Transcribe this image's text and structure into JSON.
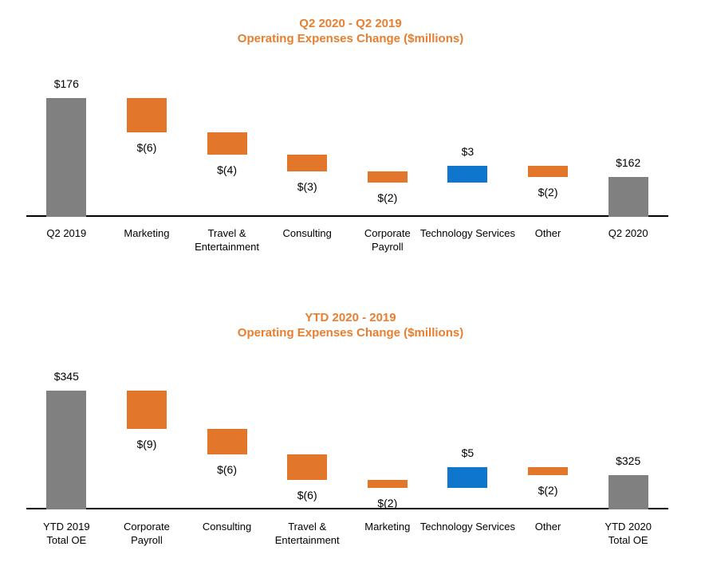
{
  "chart_data": [
    {
      "type": "bar",
      "subtype": "waterfall",
      "title_line1": "Q2 2020 - Q2 2019",
      "title_line2": "Operating Expenses Change ($millions)",
      "ylim": [
        155,
        176
      ],
      "legend": "none",
      "grid": false,
      "items": [
        {
          "category": "Q2 2019",
          "type": "total",
          "value": 176,
          "label": "$176"
        },
        {
          "category": "Marketing",
          "type": "delta",
          "value": -6,
          "label": "$(6)"
        },
        {
          "category": "Travel &\nEntertainment",
          "type": "delta",
          "value": -4,
          "label": "$(4)"
        },
        {
          "category": "Consulting",
          "type": "delta",
          "value": -3,
          "label": "$(3)"
        },
        {
          "category": "Corporate\nPayroll",
          "type": "delta",
          "value": -2,
          "label": "$(2)"
        },
        {
          "category": "Technology Services",
          "type": "delta",
          "value": 3,
          "label": "$3"
        },
        {
          "category": "Other",
          "type": "delta",
          "value": -2,
          "label": "$(2)"
        },
        {
          "category": "Q2 2020",
          "type": "total",
          "value": 162,
          "label": "$162"
        }
      ]
    },
    {
      "type": "bar",
      "subtype": "waterfall",
      "title_line1": "YTD 2020 -  2019",
      "title_line2": "Operating Expenses Change ($millions)",
      "ylim": [
        317,
        345
      ],
      "legend": "none",
      "grid": false,
      "items": [
        {
          "category": "YTD 2019\nTotal OE",
          "type": "total",
          "value": 345,
          "label": "$345"
        },
        {
          "category": "Corporate\nPayroll",
          "type": "delta",
          "value": -9,
          "label": "$(9)"
        },
        {
          "category": "Consulting",
          "type": "delta",
          "value": -6,
          "label": "$(6)"
        },
        {
          "category": "Travel &\nEntertainment",
          "type": "delta",
          "value": -6,
          "label": "$(6)"
        },
        {
          "category": "Marketing",
          "type": "delta",
          "value": -2,
          "label": "$(2)"
        },
        {
          "category": "Technology Services",
          "type": "delta",
          "value": 5,
          "label": "$5"
        },
        {
          "category": "Other",
          "type": "delta",
          "value": -2,
          "label": "$(2)"
        },
        {
          "category": "YTD 2020\nTotal OE",
          "type": "total",
          "value": 325,
          "label": "$325"
        }
      ]
    }
  ],
  "colors": {
    "total_bar": "#808080",
    "decrease_bar": "#E2772B",
    "increase_bar": "#0E76CD",
    "title_text": "#E87E2F",
    "axis_line": "#000000",
    "label_text": "#000000"
  }
}
